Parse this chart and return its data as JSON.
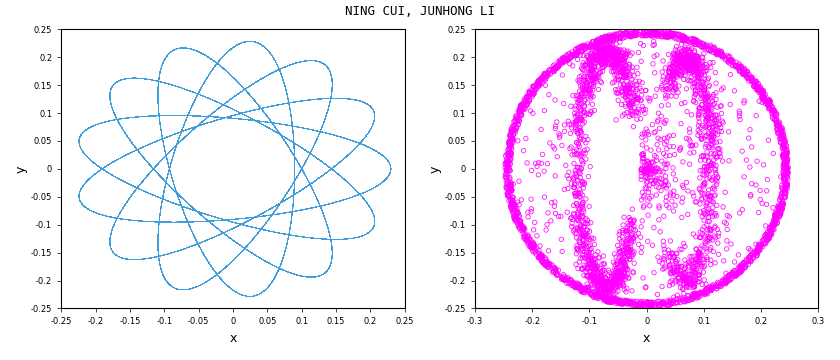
{
  "title": "NING CUI, JUNHONG LI",
  "title_fontsize": 9,
  "left_xlim": [
    -0.25,
    0.25
  ],
  "left_ylim": [
    -0.25,
    0.25
  ],
  "left_xticks": [
    -0.25,
    -0.2,
    -0.15,
    -0.1,
    -0.05,
    0,
    0.05,
    0.1,
    0.15,
    0.2,
    0.25
  ],
  "left_yticks": [
    -0.25,
    -0.2,
    -0.15,
    -0.1,
    -0.05,
    0,
    0.05,
    0.1,
    0.15,
    0.2,
    0.25
  ],
  "right_xlim": [
    -0.3,
    0.3
  ],
  "right_ylim": [
    -0.25,
    0.25
  ],
  "right_xticks": [
    -0.3,
    -0.2,
    -0.1,
    0,
    0.1,
    0.2,
    0.3
  ],
  "right_yticks": [
    -0.25,
    -0.2,
    -0.15,
    -0.1,
    -0.05,
    0,
    0.05,
    0.1,
    0.15,
    0.2,
    0.25
  ],
  "xlabel": "x",
  "ylabel": "y",
  "left_line_color": "#1f8dd6",
  "right_scatter_color": "magenta",
  "background_color": "white"
}
